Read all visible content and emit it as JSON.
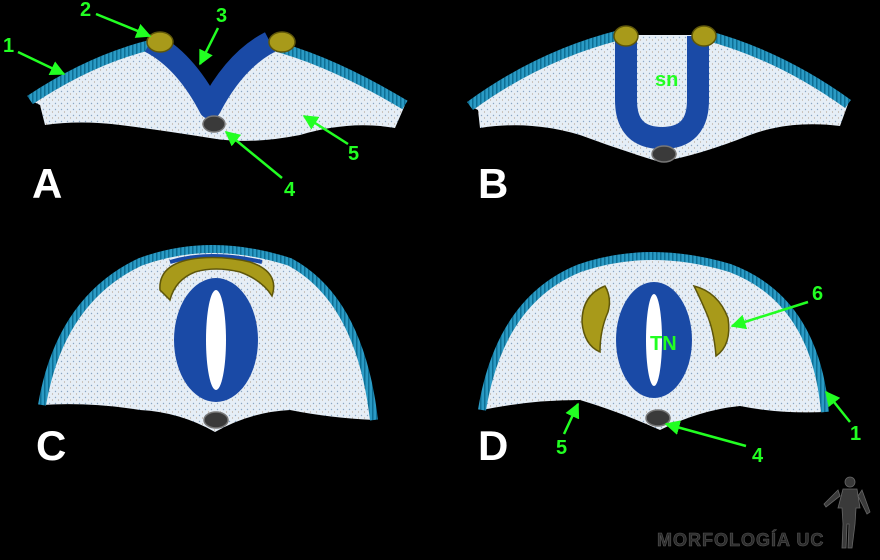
{
  "colors": {
    "background": "#000000",
    "ectoderm": "#1e8fb8",
    "ectoderm_edge": "#0b5f82",
    "mesenchyme": "#e4ecf4",
    "neural_tissue": "#1a4aa6",
    "neural_crest": "#a89a1a",
    "notochord": "#3a3a3a",
    "label": "#22ff22",
    "panel_letter": "#ffffff"
  },
  "panels": {
    "a": {
      "letter": "A"
    },
    "b": {
      "letter": "B",
      "inner_label": "sn"
    },
    "c": {
      "letter": "C"
    },
    "d": {
      "letter": "D",
      "inner_label": "TN"
    }
  },
  "callouts": {
    "a_1": "1",
    "a_2": "2",
    "a_3": "3",
    "a_4": "4",
    "a_5": "5",
    "d_6": "6",
    "d_1": "1",
    "d_4": "4",
    "d_5": "5"
  },
  "watermark": "MORFOLOGÍA UC"
}
